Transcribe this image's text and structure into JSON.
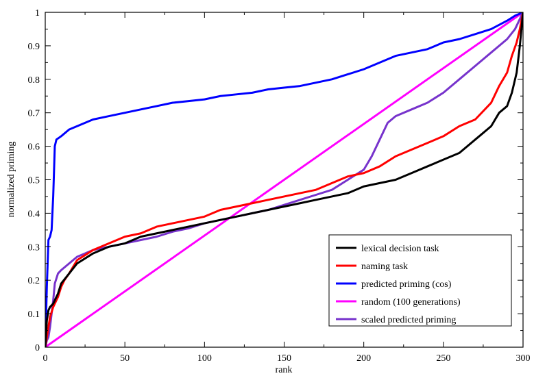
{
  "chart_data": {
    "type": "line",
    "title": "",
    "xlabel": "rank",
    "ylabel": "normalized priming",
    "xlim": [
      0,
      300
    ],
    "ylim": [
      0,
      1
    ],
    "xticks": [
      "0",
      "50",
      "100",
      "150",
      "200",
      "250",
      "300"
    ],
    "yticks": [
      "0",
      "0.1",
      "0.2",
      "0.3",
      "0.4",
      "0.5",
      "0.6",
      "0.7",
      "0.8",
      "0.9",
      "1"
    ],
    "grid": false,
    "legend_position": "bottom-right",
    "series": [
      {
        "name": "lexical decision task",
        "color": "#000000",
        "x": [
          0,
          1,
          2,
          3,
          5,
          8,
          10,
          15,
          20,
          30,
          40,
          50,
          60,
          70,
          80,
          90,
          100,
          110,
          120,
          130,
          140,
          150,
          160,
          170,
          180,
          190,
          200,
          210,
          220,
          230,
          240,
          250,
          260,
          270,
          275,
          280,
          285,
          290,
          293,
          296,
          298,
          300
        ],
        "y": [
          0.0,
          0.08,
          0.11,
          0.12,
          0.13,
          0.16,
          0.19,
          0.22,
          0.25,
          0.28,
          0.3,
          0.31,
          0.33,
          0.34,
          0.35,
          0.36,
          0.37,
          0.38,
          0.39,
          0.4,
          0.41,
          0.42,
          0.43,
          0.44,
          0.45,
          0.46,
          0.48,
          0.49,
          0.5,
          0.52,
          0.54,
          0.56,
          0.58,
          0.62,
          0.64,
          0.66,
          0.7,
          0.72,
          0.76,
          0.82,
          0.9,
          1.0
        ]
      },
      {
        "name": "naming task",
        "color": "#ff0000",
        "x": [
          0,
          2,
          3,
          5,
          8,
          10,
          12,
          15,
          20,
          30,
          40,
          50,
          60,
          70,
          80,
          90,
          100,
          110,
          120,
          130,
          140,
          150,
          160,
          170,
          180,
          190,
          200,
          210,
          220,
          230,
          240,
          250,
          260,
          270,
          280,
          285,
          290,
          293,
          296,
          298,
          300
        ],
        "y": [
          0.0,
          0.06,
          0.09,
          0.12,
          0.15,
          0.18,
          0.2,
          0.22,
          0.26,
          0.29,
          0.31,
          0.33,
          0.34,
          0.36,
          0.37,
          0.38,
          0.39,
          0.41,
          0.42,
          0.43,
          0.44,
          0.45,
          0.46,
          0.47,
          0.49,
          0.51,
          0.52,
          0.54,
          0.57,
          0.59,
          0.61,
          0.63,
          0.66,
          0.68,
          0.73,
          0.78,
          0.82,
          0.87,
          0.91,
          0.95,
          1.0
        ]
      },
      {
        "name": "predicted priming (cos)",
        "color": "#0000ff",
        "x": [
          0,
          1,
          2,
          3,
          4,
          5,
          6,
          7,
          10,
          15,
          20,
          25,
          30,
          40,
          50,
          60,
          70,
          80,
          90,
          100,
          110,
          120,
          130,
          140,
          150,
          160,
          170,
          180,
          190,
          200,
          210,
          220,
          230,
          240,
          250,
          260,
          270,
          280,
          290,
          295,
          300
        ],
        "y": [
          0.0,
          0.18,
          0.32,
          0.33,
          0.35,
          0.45,
          0.6,
          0.62,
          0.63,
          0.65,
          0.66,
          0.67,
          0.68,
          0.69,
          0.7,
          0.71,
          0.72,
          0.73,
          0.735,
          0.74,
          0.75,
          0.755,
          0.76,
          0.77,
          0.775,
          0.78,
          0.79,
          0.8,
          0.815,
          0.83,
          0.85,
          0.87,
          0.88,
          0.89,
          0.91,
          0.92,
          0.935,
          0.95,
          0.975,
          0.99,
          1.0
        ]
      },
      {
        "name": "random (100 generations)",
        "color": "#ff00ff",
        "x": [
          0,
          300
        ],
        "y": [
          0.0,
          1.0
        ]
      },
      {
        "name": "scaled predicted priming",
        "color": "#7733cc",
        "x": [
          0,
          1,
          2,
          3,
          4,
          5,
          6,
          8,
          10,
          15,
          20,
          25,
          30,
          40,
          50,
          60,
          70,
          80,
          90,
          100,
          110,
          120,
          130,
          140,
          150,
          160,
          170,
          180,
          190,
          200,
          205,
          210,
          215,
          220,
          230,
          240,
          250,
          260,
          270,
          280,
          290,
          295,
          300
        ],
        "y": [
          0.0,
          0.02,
          0.03,
          0.06,
          0.1,
          0.14,
          0.19,
          0.22,
          0.23,
          0.25,
          0.27,
          0.28,
          0.29,
          0.3,
          0.31,
          0.32,
          0.33,
          0.345,
          0.355,
          0.37,
          0.38,
          0.39,
          0.4,
          0.41,
          0.425,
          0.44,
          0.455,
          0.47,
          0.5,
          0.53,
          0.57,
          0.62,
          0.67,
          0.69,
          0.71,
          0.73,
          0.76,
          0.8,
          0.84,
          0.88,
          0.92,
          0.95,
          1.0
        ]
      }
    ]
  }
}
